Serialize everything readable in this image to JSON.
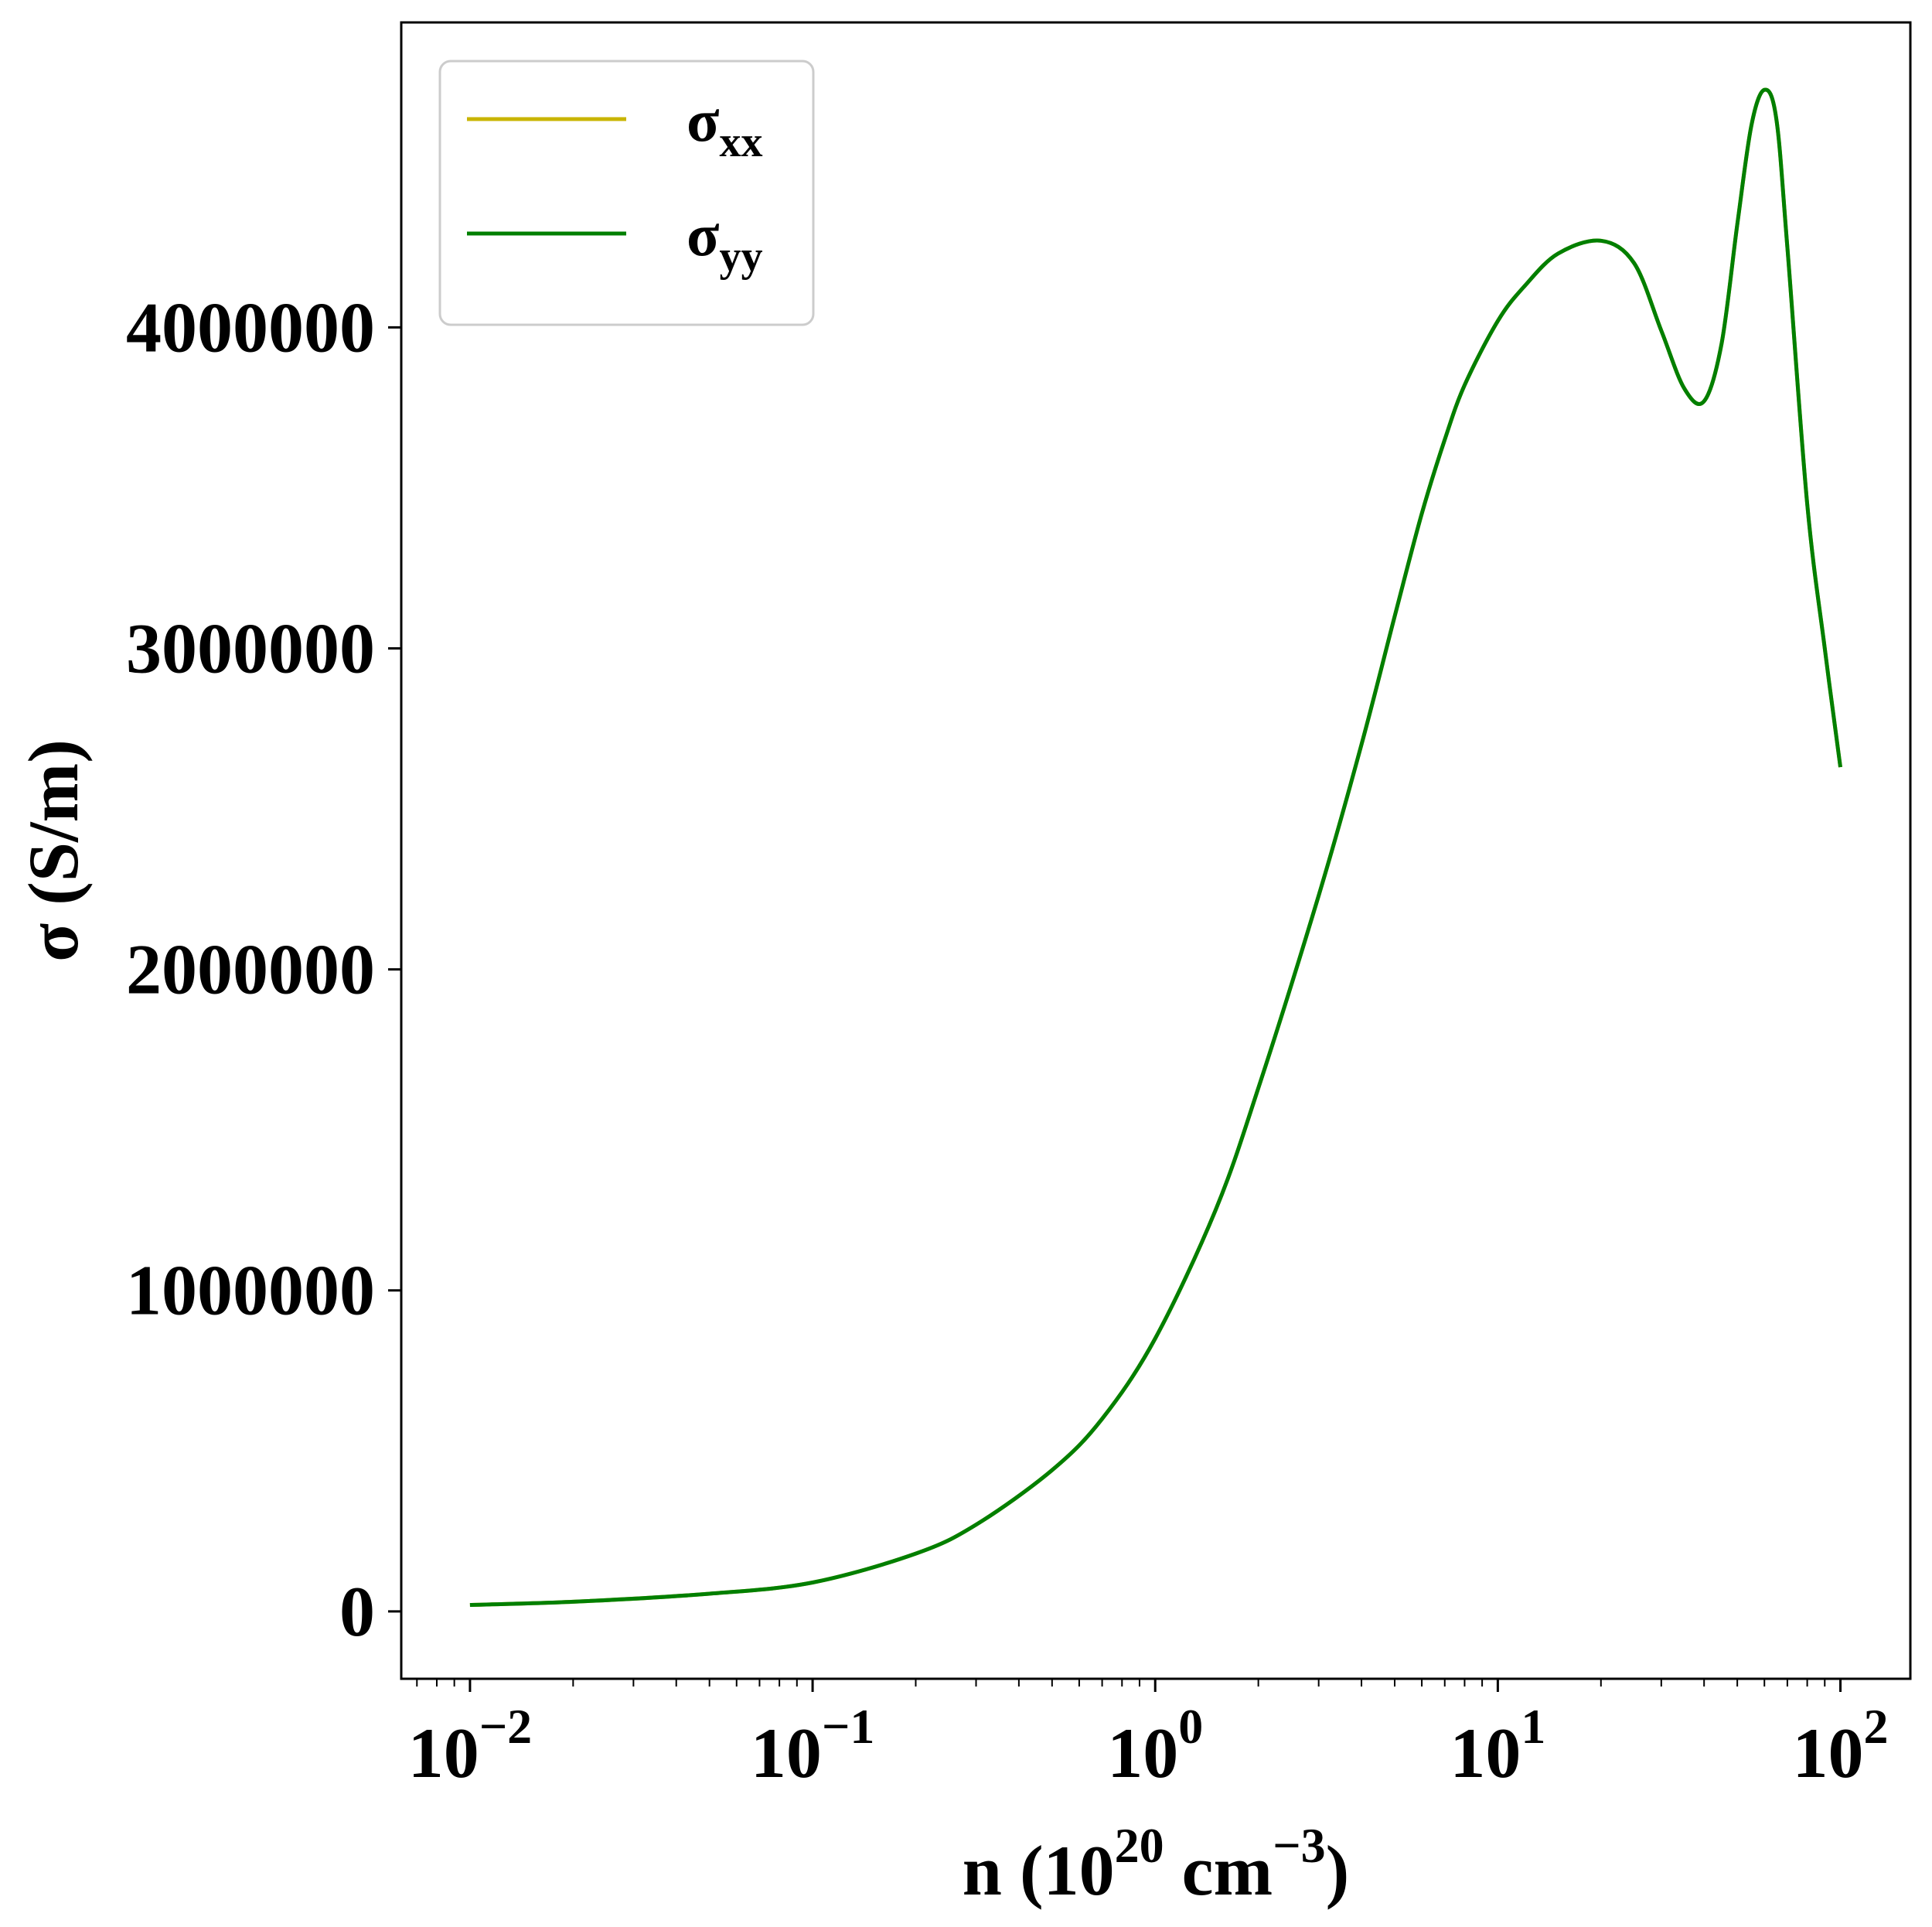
{
  "chart_data": {
    "type": "line",
    "xlabel": {
      "base": "n (10",
      "sup1": "20",
      "mid": " cm",
      "sup2": "−3",
      "end": ")"
    },
    "ylabel": "σ (S/m)",
    "x_scale": "log",
    "xlim": [
      0.0063,
      160
    ],
    "ylim": [
      -210000,
      4950000
    ],
    "x_ticks": [
      {
        "value": 0.01,
        "base": "10",
        "exp": "−2"
      },
      {
        "value": 0.1,
        "base": "10",
        "exp": "−1"
      },
      {
        "value": 1,
        "base": "10",
        "exp": "0"
      },
      {
        "value": 10,
        "base": "10",
        "exp": "1"
      },
      {
        "value": 100,
        "base": "10",
        "exp": "2"
      }
    ],
    "y_ticks": [
      {
        "value": 0,
        "label": "0"
      },
      {
        "value": 1000000,
        "label": "1000000"
      },
      {
        "value": 2000000,
        "label": "2000000"
      },
      {
        "value": 3000000,
        "label": "3000000"
      },
      {
        "value": 4000000,
        "label": "4000000"
      }
    ],
    "grid": false,
    "legend": {
      "placement": "top-left"
    },
    "series": [
      {
        "name": "σ",
        "subscript": "xx",
        "color": "#c8b400",
        "x": [
          0.01,
          0.02,
          0.05,
          0.1,
          0.2,
          0.3,
          0.5,
          0.7,
          1,
          1.5,
          2,
          3,
          4,
          5,
          6,
          7,
          8,
          10,
          12,
          15,
          20,
          25,
          30,
          35,
          40,
          45,
          50,
          55,
          60,
          65,
          70,
          80,
          90,
          100
        ],
        "values": [
          20000,
          30000,
          55000,
          90000,
          180000,
          270000,
          440000,
          600000,
          850000,
          1250000,
          1630000,
          2230000,
          2700000,
          3100000,
          3420000,
          3650000,
          3820000,
          4020000,
          4130000,
          4230000,
          4270000,
          4200000,
          3990000,
          3810000,
          3770000,
          3950000,
          4320000,
          4630000,
          4740000,
          4650000,
          4250000,
          3450000,
          3000000,
          2630000
        ]
      },
      {
        "name": "σ",
        "subscript": "yy",
        "color": "#007f00",
        "x": [
          0.01,
          0.02,
          0.05,
          0.1,
          0.2,
          0.3,
          0.5,
          0.7,
          1,
          1.5,
          2,
          3,
          4,
          5,
          6,
          7,
          8,
          10,
          12,
          15,
          20,
          25,
          30,
          35,
          40,
          45,
          50,
          55,
          60,
          65,
          70,
          80,
          90,
          100
        ],
        "values": [
          20000,
          30000,
          55000,
          90000,
          180000,
          270000,
          440000,
          600000,
          850000,
          1250000,
          1630000,
          2230000,
          2700000,
          3100000,
          3420000,
          3650000,
          3820000,
          4020000,
          4130000,
          4230000,
          4270000,
          4200000,
          3990000,
          3810000,
          3770000,
          3950000,
          4320000,
          4630000,
          4740000,
          4650000,
          4250000,
          3450000,
          3000000,
          2630000
        ]
      }
    ]
  }
}
